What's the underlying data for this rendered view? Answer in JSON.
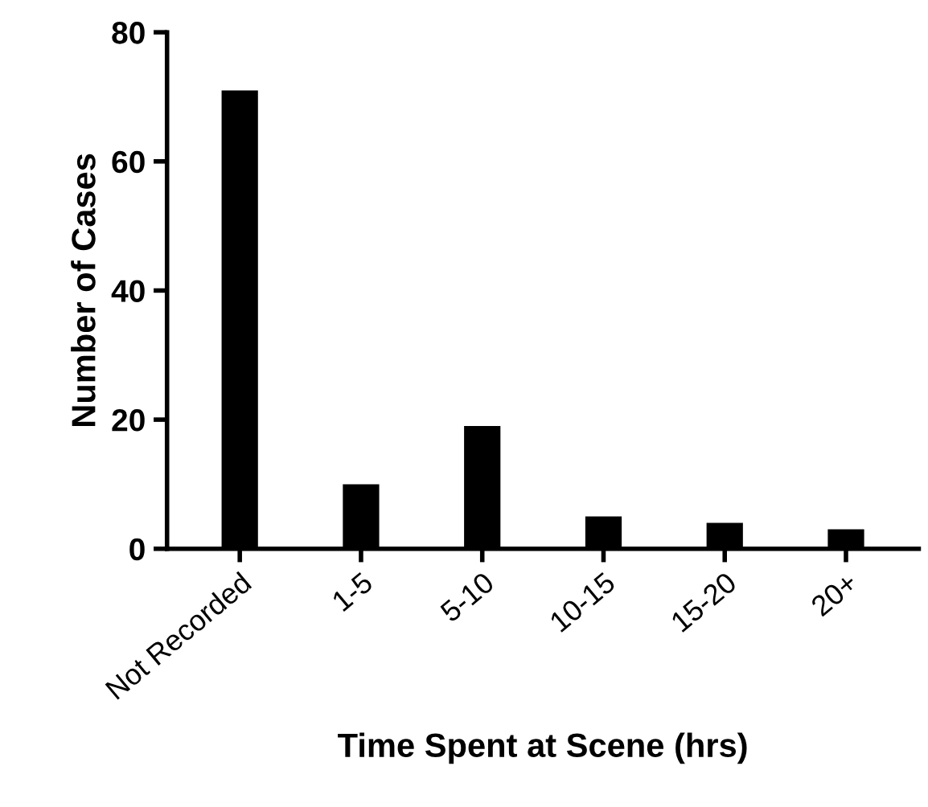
{
  "chart_data": {
    "type": "bar",
    "xlabel": "Time Spent at Scene (hrs)",
    "ylabel": "Number of Cases",
    "categories": [
      "Not Recorded",
      "1-5",
      "5-10",
      "10-15",
      "15-20",
      "20+"
    ],
    "values": [
      71,
      10,
      19,
      5,
      4,
      3
    ],
    "color": "#000000",
    "ylim": [
      0,
      80
    ],
    "yticks": [
      0,
      20,
      40,
      60,
      80
    ],
    "grid": false,
    "legend": false
  }
}
